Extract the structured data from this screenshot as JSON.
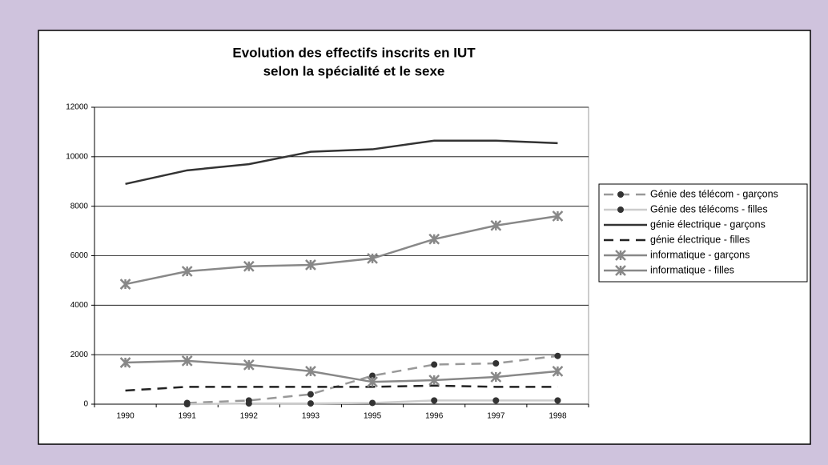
{
  "chart_data": {
    "type": "line",
    "title": [
      "Evolution des effectifs inscrits en IUT",
      "selon la spécialité et le sexe"
    ],
    "categories": [
      "1990",
      "1991",
      "1992",
      "1993",
      "1995",
      "1996",
      "1997",
      "1998"
    ],
    "ylim": [
      0,
      12000
    ],
    "yticks": [
      0,
      2000,
      4000,
      6000,
      8000,
      10000,
      12000
    ],
    "grid": true,
    "legend": "right",
    "series": [
      {
        "name": "Génie des télécom - garçons",
        "color": "#999999",
        "dash": true,
        "marker": "circle",
        "marker_color": "#333333",
        "values": [
          null,
          50,
          150,
          400,
          1150,
          1600,
          1650,
          1950
        ]
      },
      {
        "name": "Génie des télécoms - filles",
        "color": "#cccccc",
        "dash": false,
        "marker": "circle",
        "marker_color": "#333333",
        "values": [
          null,
          0,
          30,
          30,
          50,
          150,
          150,
          150
        ]
      },
      {
        "name": "génie électrique - garçons",
        "color": "#333333",
        "dash": false,
        "marker": null,
        "values": [
          8900,
          9450,
          9700,
          10200,
          10300,
          10650,
          10650,
          10550
        ]
      },
      {
        "name": "génie électrique - filles",
        "color": "#222222",
        "dash": true,
        "marker": null,
        "values": [
          550,
          700,
          700,
          700,
          700,
          750,
          700,
          700
        ]
      },
      {
        "name": "informatique - garçons",
        "color": "#888888",
        "dash": false,
        "marker": "asterisk",
        "marker_color": "#888888",
        "values": [
          4850,
          5370,
          5570,
          5630,
          5890,
          6670,
          7220,
          7600
        ]
      },
      {
        "name": "informatique - filles",
        "color": "#888888",
        "dash": false,
        "marker": "asterisk",
        "marker_color": "#888888",
        "values": [
          1680,
          1750,
          1590,
          1330,
          900,
          970,
          1100,
          1330
        ]
      }
    ]
  }
}
